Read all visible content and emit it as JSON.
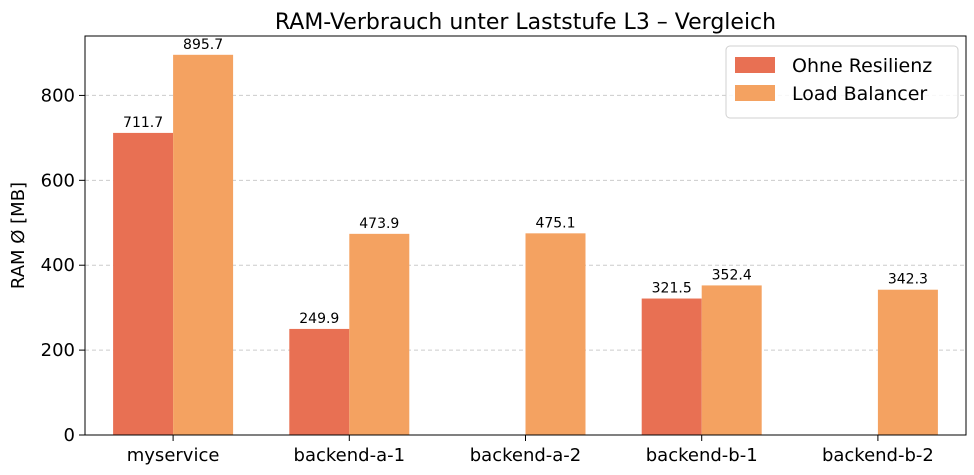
{
  "chart_data": {
    "type": "bar",
    "title": "RAM-Verbrauch unter Laststufe L3 – Vergleich",
    "xlabel": "",
    "ylabel": "RAM Ø [MB]",
    "categories": [
      "myservice",
      "backend-a-1",
      "backend-a-2",
      "backend-b-1",
      "backend-b-2"
    ],
    "series": [
      {
        "name": "Ohne Resilienz",
        "color": "#e87053",
        "values": [
          711.7,
          249.9,
          null,
          321.5,
          null
        ]
      },
      {
        "name": "Load Balancer",
        "color": "#f4a261",
        "values": [
          895.7,
          473.9,
          475.1,
          352.4,
          342.3
        ]
      }
    ],
    "ylim": [
      0,
      940
    ],
    "yticks": [
      0,
      200,
      400,
      600,
      800
    ],
    "grid": "y-dashed",
    "legend_position": "top-right"
  }
}
